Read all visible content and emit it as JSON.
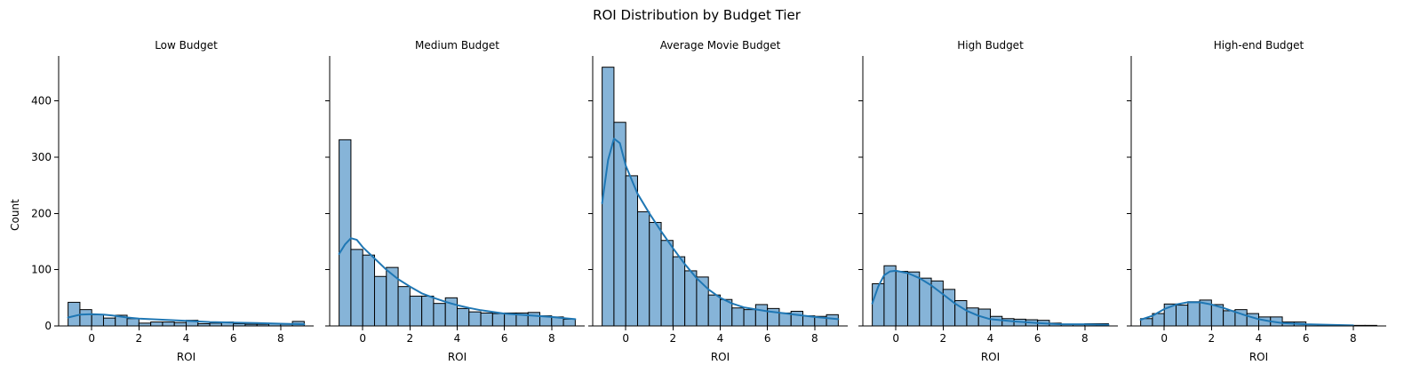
{
  "chart_data": {
    "type": "bar",
    "title": "ROI Distribution by Budget Tier",
    "ylabel": "Count",
    "xlabel": "ROI",
    "ylim": [
      0,
      480
    ],
    "yticks": [
      0,
      100,
      200,
      300,
      400
    ],
    "grid": false,
    "bar_color": "#86b4d8",
    "line_color": "#1f77b4",
    "panels": [
      {
        "title": "Low Budget",
        "xlim": [
          -1.4,
          9.4
        ],
        "xticks": [
          0,
          2,
          4,
          6,
          8
        ],
        "bin_start": -1.0,
        "bin_width": 0.5,
        "counts": [
          42,
          29,
          20,
          14,
          19,
          13,
          5,
          7,
          7,
          6,
          10,
          4,
          5,
          7,
          4,
          3,
          3,
          4,
          3,
          8
        ],
        "kde": [
          [
            -1.0,
            15
          ],
          [
            -0.5,
            20
          ],
          [
            0.0,
            21
          ],
          [
            0.5,
            20
          ],
          [
            1.0,
            18
          ],
          [
            1.5,
            15
          ],
          [
            2.0,
            13
          ],
          [
            3.0,
            11
          ],
          [
            4.0,
            9
          ],
          [
            5.0,
            7
          ],
          [
            6.0,
            6
          ],
          [
            7.0,
            5
          ],
          [
            8.0,
            4
          ],
          [
            9.0,
            3
          ]
        ]
      },
      {
        "title": "Medium Budget",
        "xlim": [
          -1.4,
          9.4
        ],
        "xticks": [
          0,
          2,
          4,
          6,
          8
        ],
        "bin_start": -1.0,
        "bin_width": 0.5,
        "counts": [
          331,
          136,
          126,
          88,
          104,
          70,
          53,
          53,
          40,
          50,
          31,
          25,
          23,
          22,
          23,
          23,
          24,
          18,
          16,
          12
        ],
        "kde": [
          [
            -1.0,
            128
          ],
          [
            -0.75,
            145
          ],
          [
            -0.5,
            156
          ],
          [
            -0.25,
            153
          ],
          [
            0.0,
            140
          ],
          [
            0.5,
            120
          ],
          [
            1.0,
            100
          ],
          [
            1.5,
            83
          ],
          [
            2.0,
            70
          ],
          [
            2.5,
            58
          ],
          [
            3.0,
            50
          ],
          [
            3.5,
            43
          ],
          [
            4.0,
            37
          ],
          [
            4.5,
            32
          ],
          [
            5.0,
            28
          ],
          [
            6.0,
            22
          ],
          [
            7.0,
            19
          ],
          [
            8.0,
            16
          ],
          [
            9.0,
            12
          ]
        ]
      },
      {
        "title": "Average Movie Budget",
        "xlim": [
          -1.4,
          9.4
        ],
        "xticks": [
          0,
          2,
          4,
          6,
          8
        ],
        "bin_start": -1.0,
        "bin_width": 0.5,
        "counts": [
          460,
          362,
          267,
          203,
          184,
          152,
          123,
          98,
          87,
          55,
          47,
          32,
          29,
          38,
          31,
          23,
          26,
          18,
          17,
          20
        ],
        "kde": [
          [
            -1.0,
            218
          ],
          [
            -0.75,
            295
          ],
          [
            -0.5,
            333
          ],
          [
            -0.25,
            325
          ],
          [
            0.0,
            285
          ],
          [
            0.5,
            235
          ],
          [
            1.0,
            200
          ],
          [
            1.5,
            168
          ],
          [
            2.0,
            138
          ],
          [
            2.5,
            110
          ],
          [
            3.0,
            85
          ],
          [
            3.5,
            65
          ],
          [
            4.0,
            50
          ],
          [
            4.5,
            40
          ],
          [
            5.0,
            33
          ],
          [
            6.0,
            26
          ],
          [
            7.0,
            21
          ],
          [
            8.0,
            16
          ],
          [
            9.0,
            12
          ]
        ]
      },
      {
        "title": "High Budget",
        "xlim": [
          -1.4,
          9.4
        ],
        "xticks": [
          0,
          2,
          4,
          6,
          8
        ],
        "bin_start": -1.0,
        "bin_width": 0.5,
        "counts": [
          75,
          107,
          97,
          96,
          85,
          80,
          65,
          45,
          32,
          30,
          17,
          13,
          12,
          11,
          10,
          5,
          3,
          3,
          4,
          4
        ],
        "kde": [
          [
            -1.0,
            40
          ],
          [
            -0.75,
            70
          ],
          [
            -0.5,
            90
          ],
          [
            -0.25,
            97
          ],
          [
            0.0,
            98
          ],
          [
            0.5,
            94
          ],
          [
            1.0,
            85
          ],
          [
            1.5,
            72
          ],
          [
            2.0,
            56
          ],
          [
            2.5,
            40
          ],
          [
            3.0,
            27
          ],
          [
            3.5,
            18
          ],
          [
            4.0,
            12
          ],
          [
            5.0,
            8
          ],
          [
            6.0,
            5
          ],
          [
            7.0,
            3
          ],
          [
            8.0,
            3
          ],
          [
            9.0,
            2
          ]
        ]
      },
      {
        "title": "High-end Budget",
        "xlim": [
          -1.4,
          9.4
        ],
        "xticks": [
          0,
          2,
          4,
          6,
          8
        ],
        "bin_start": -1.0,
        "bin_width": 0.5,
        "counts": [
          13,
          22,
          39,
          37,
          43,
          46,
          38,
          27,
          29,
          22,
          16,
          16,
          7,
          7,
          3,
          2,
          1,
          1,
          1,
          1
        ],
        "kde": [
          [
            -1.0,
            11
          ],
          [
            -0.5,
            18
          ],
          [
            0.0,
            30
          ],
          [
            0.5,
            38
          ],
          [
            1.0,
            42
          ],
          [
            1.5,
            42
          ],
          [
            2.0,
            38
          ],
          [
            2.5,
            32
          ],
          [
            3.0,
            25
          ],
          [
            3.5,
            18
          ],
          [
            4.0,
            12
          ],
          [
            4.5,
            8
          ],
          [
            5.0,
            5
          ],
          [
            6.0,
            3
          ],
          [
            7.0,
            2
          ],
          [
            8.0,
            1
          ]
        ]
      }
    ]
  }
}
